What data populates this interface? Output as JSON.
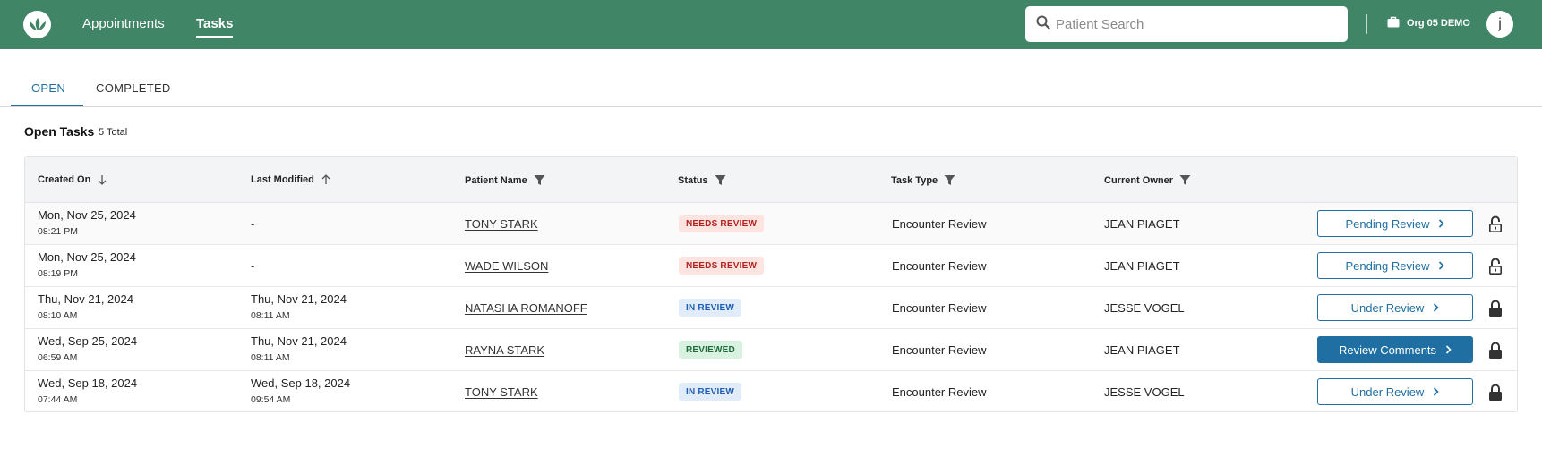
{
  "header": {
    "nav": [
      {
        "label": "Appointments",
        "active": false
      },
      {
        "label": "Tasks",
        "active": true
      }
    ],
    "search": {
      "placeholder": "Patient Search",
      "value": ""
    },
    "org_label": "Org 05 DEMO",
    "avatar_initial": "j",
    "brand_color": "#3f8566"
  },
  "tabs": [
    {
      "label": "OPEN",
      "active": true
    },
    {
      "label": "COMPLETED",
      "active": false
    }
  ],
  "section": {
    "title": "Open Tasks",
    "count": "5 Total"
  },
  "table": {
    "columns": [
      "Created On",
      "Last Modified",
      "Patient Name",
      "Status",
      "Task Type",
      "Current Owner"
    ],
    "rows": [
      {
        "created_date": "Mon, Nov 25, 2024",
        "created_time": "08:21 PM",
        "modified_date": "-",
        "modified_time": "",
        "patient": "TONY STARK",
        "status": "NEEDS REVIEW",
        "task_type": "Encounter Review",
        "owner": "JEAN PIAGET",
        "action": "Pending Review",
        "action_style": "outline",
        "lock": "unlocked"
      },
      {
        "created_date": "Mon, Nov 25, 2024",
        "created_time": "08:19 PM",
        "modified_date": "-",
        "modified_time": "",
        "patient": "WADE WILSON",
        "status": "NEEDS REVIEW",
        "task_type": "Encounter Review",
        "owner": "JEAN PIAGET",
        "action": "Pending Review",
        "action_style": "outline",
        "lock": "unlocked"
      },
      {
        "created_date": "Thu, Nov 21, 2024",
        "created_time": "08:10 AM",
        "modified_date": "Thu, Nov 21, 2024",
        "modified_time": "08:11 AM",
        "patient": "NATASHA ROMANOFF",
        "status": "IN REVIEW",
        "task_type": "Encounter Review",
        "owner": "JESSE VOGEL",
        "action": "Under Review",
        "action_style": "outline",
        "lock": "locked"
      },
      {
        "created_date": "Wed, Sep 25, 2024",
        "created_time": "06:59 AM",
        "modified_date": "Thu, Nov 21, 2024",
        "modified_time": "08:11 AM",
        "patient": "RAYNA STARK",
        "status": "REVIEWED",
        "task_type": "Encounter Review",
        "owner": "JEAN PIAGET",
        "action": "Review Comments",
        "action_style": "filled",
        "lock": "locked"
      },
      {
        "created_date": "Wed, Sep 18, 2024",
        "created_time": "07:44 AM",
        "modified_date": "Wed, Sep 18, 2024",
        "modified_time": "09:54 AM",
        "patient": "TONY STARK",
        "status": "IN REVIEW",
        "task_type": "Encounter Review",
        "owner": "JESSE VOGEL",
        "action": "Under Review",
        "action_style": "outline",
        "lock": "locked"
      }
    ]
  },
  "status_colors": {
    "NEEDS REVIEW": {
      "bg": "#fde4e1",
      "fg": "#b3261e"
    },
    "IN REVIEW": {
      "bg": "#e1ecfb",
      "fg": "#1f5fb3"
    },
    "REVIEWED": {
      "bg": "#d8f1e0",
      "fg": "#1e6b3a"
    }
  },
  "accent_color": "#1f6fa3"
}
